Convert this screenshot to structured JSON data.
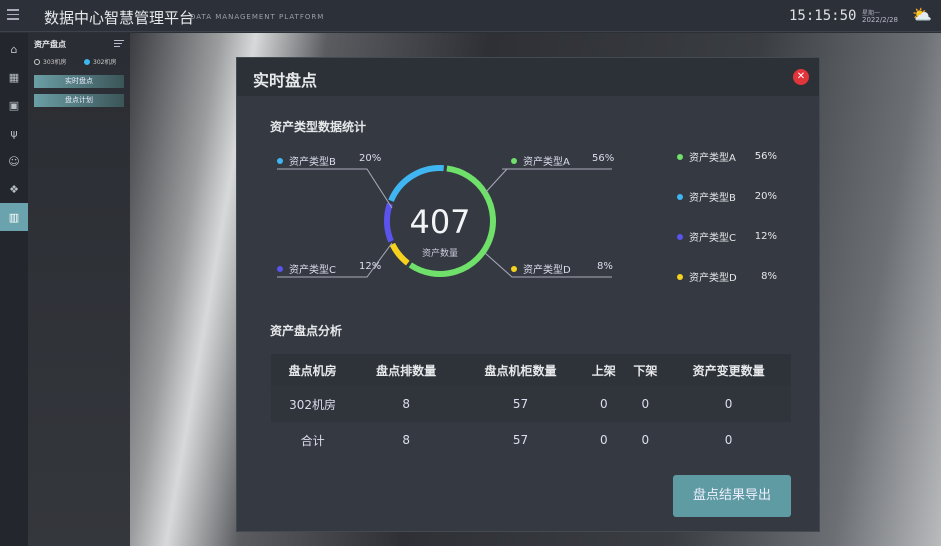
{
  "header": {
    "title": "数据中心智慧管理平台",
    "subtitle": "DATA MANAGEMENT PLATFORM",
    "time": "15:15:50",
    "weekday": "星期一",
    "date": "2022/2/28",
    "weather_icon": "partly-cloudy-icon"
  },
  "rail": {
    "icons": [
      "home-icon",
      "grid-icon",
      "monitor-icon",
      "plug-icon",
      "face-icon",
      "cubes-icon",
      "inventory-icon"
    ],
    "active": 6
  },
  "sidebar": {
    "title": "资产盘点",
    "rooms": [
      {
        "label": "303机房",
        "selected": false
      },
      {
        "label": "302机房",
        "selected": true
      }
    ],
    "buttons": [
      "实时盘点",
      "盘点计划"
    ]
  },
  "modal": {
    "title": "实时盘点",
    "section1": "资产类型数据统计",
    "section2": "资产盘点分析",
    "export": "盘点结果导出"
  },
  "chart_data": {
    "type": "pie",
    "center_value": "407",
    "center_label": "资产数量",
    "slices": [
      {
        "name": "资产类型A",
        "value": 56,
        "label": "56%",
        "color": "#6fe06a"
      },
      {
        "name": "资产类型B",
        "value": 20,
        "label": "20%",
        "color": "#3fb6f2"
      },
      {
        "name": "资产类型C",
        "value": 12,
        "label": "12%",
        "color": "#5b53ee"
      },
      {
        "name": "资产类型D",
        "value": 8,
        "label": "8%",
        "color": "#f5d21e"
      }
    ]
  },
  "table": {
    "headers": [
      "盘点机房",
      "盘点排数量",
      "盘点机柜数量",
      "上架",
      "下架",
      "资产变更数量"
    ],
    "rows": [
      [
        "302机房",
        "8",
        "57",
        "0",
        "0",
        "0"
      ],
      [
        "合计",
        "8",
        "57",
        "0",
        "0",
        "0"
      ]
    ]
  }
}
